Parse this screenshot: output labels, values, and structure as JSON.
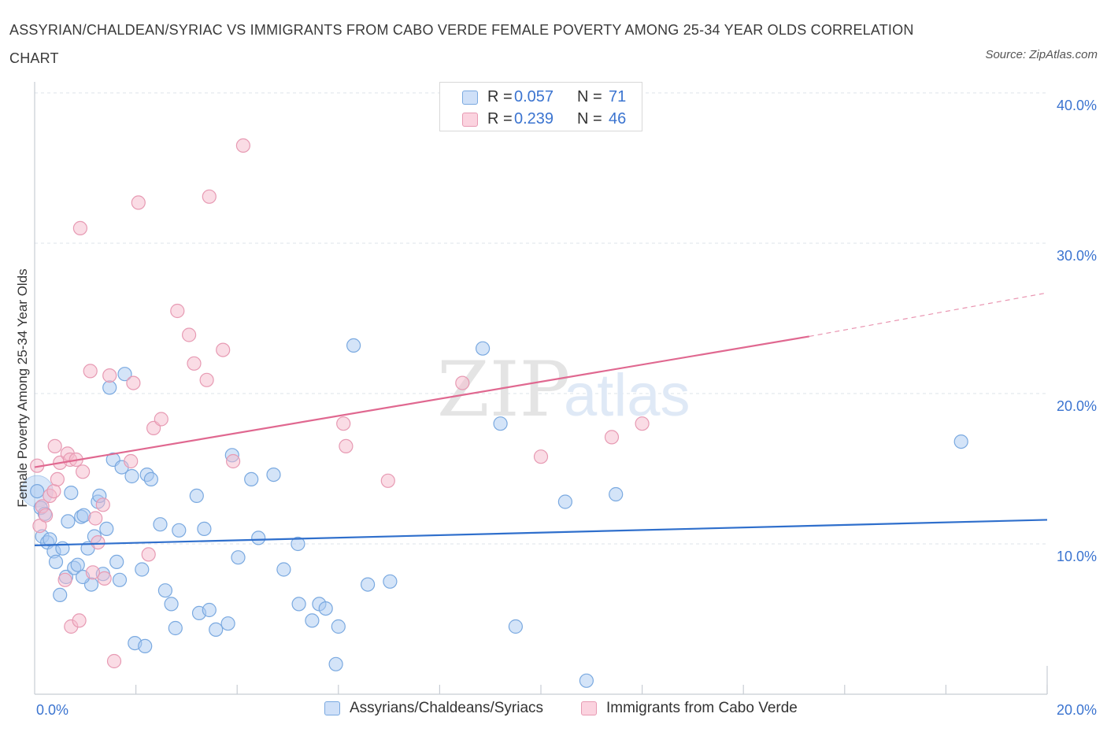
{
  "header": {
    "title": "ASSYRIAN/CHALDEAN/SYRIAC VS IMMIGRANTS FROM CABO VERDE FEMALE POVERTY AMONG 25-34 YEAR OLDS CORRELATION CHART",
    "source": "Source: ZipAtlas.com"
  },
  "watermark": {
    "zip": "ZIP",
    "atlas": "atlas"
  },
  "legend": {
    "rows": [
      {
        "r_label": "R =",
        "r_value": "0.057",
        "n_label": "N =",
        "n_value": "71",
        "color": "#a9c9f2"
      },
      {
        "r_label": "R =",
        "r_value": "0.239",
        "n_label": "N =",
        "n_value": "46",
        "color": "#f6b9cb"
      }
    ]
  },
  "colors": {
    "blue_fill": "#a9c9f2",
    "blue_stroke": "#7aa9e0",
    "blue_line": "#2f6fcc",
    "pink_fill": "#f6b9cb",
    "pink_stroke": "#e79ab3",
    "pink_line": "#e06890",
    "axis_text": "#3b74d0",
    "grid": "#dde3ea"
  },
  "chart_data": {
    "type": "scatter",
    "title": "ASSYRIAN/CHALDEAN/SYRIAC VS IMMIGRANTS FROM CABO VERDE FEMALE POVERTY AMONG 25-34 YEAR OLDS CORRELATION CHART",
    "xlabel": "",
    "ylabel": "Female Poverty Among 25-34 Year Olds",
    "xlim": [
      0,
      20
    ],
    "ylim": [
      0,
      40
    ],
    "x_tick_labels": [
      "0.0%",
      "20.0%"
    ],
    "y_ticks": [
      10,
      20,
      30,
      40
    ],
    "y_tick_labels": [
      "10.0%",
      "20.0%",
      "30.0%",
      "40.0%"
    ],
    "grid": true,
    "legend_position": "top-center",
    "series": [
      {
        "name": "Assyrians/Chaldeans/Syriacs",
        "r": 0.057,
        "n": 71,
        "trend": {
          "x": [
            0,
            20
          ],
          "y": [
            9.9,
            11.6
          ]
        },
        "points": [
          [
            0.05,
            13.5
          ],
          [
            0.12,
            12.4
          ],
          [
            0.15,
            10.5
          ],
          [
            0.25,
            10.1
          ],
          [
            0.3,
            10.3
          ],
          [
            0.38,
            9.5
          ],
          [
            0.42,
            8.8
          ],
          [
            0.5,
            6.6
          ],
          [
            0.55,
            9.7
          ],
          [
            0.62,
            7.8
          ],
          [
            0.66,
            11.5
          ],
          [
            0.72,
            13.4
          ],
          [
            0.78,
            8.4
          ],
          [
            0.85,
            8.6
          ],
          [
            0.92,
            11.8
          ],
          [
            0.97,
            11.9
          ],
          [
            1.05,
            9.7
          ],
          [
            1.12,
            7.3
          ],
          [
            1.18,
            10.5
          ],
          [
            1.25,
            12.8
          ],
          [
            1.28,
            13.2
          ],
          [
            1.35,
            8.0
          ],
          [
            1.42,
            11.0
          ],
          [
            1.48,
            20.4
          ],
          [
            1.55,
            15.6
          ],
          [
            1.62,
            8.8
          ],
          [
            1.68,
            7.6
          ],
          [
            1.72,
            15.1
          ],
          [
            1.78,
            21.3
          ],
          [
            1.92,
            14.5
          ],
          [
            1.98,
            3.4
          ],
          [
            2.12,
            8.3
          ],
          [
            2.18,
            3.2
          ],
          [
            2.22,
            14.6
          ],
          [
            2.3,
            14.3
          ],
          [
            2.48,
            11.3
          ],
          [
            2.58,
            6.9
          ],
          [
            2.7,
            6.0
          ],
          [
            2.78,
            4.4
          ],
          [
            2.85,
            10.9
          ],
          [
            3.2,
            13.2
          ],
          [
            3.25,
            5.4
          ],
          [
            3.35,
            11.0
          ],
          [
            3.45,
            5.6
          ],
          [
            3.58,
            4.3
          ],
          [
            3.82,
            4.7
          ],
          [
            3.9,
            15.9
          ],
          [
            4.02,
            9.1
          ],
          [
            4.28,
            14.3
          ],
          [
            4.42,
            10.4
          ],
          [
            4.72,
            14.6
          ],
          [
            4.92,
            8.3
          ],
          [
            5.2,
            10.0
          ],
          [
            5.22,
            6.0
          ],
          [
            5.48,
            4.9
          ],
          [
            5.62,
            6.0
          ],
          [
            5.75,
            5.7
          ],
          [
            5.95,
            2.0
          ],
          [
            6.0,
            4.5
          ],
          [
            6.3,
            23.2
          ],
          [
            6.58,
            7.3
          ],
          [
            7.02,
            7.5
          ],
          [
            8.85,
            23.0
          ],
          [
            9.2,
            18.0
          ],
          [
            9.5,
            4.5
          ],
          [
            10.48,
            12.8
          ],
          [
            10.9,
            0.9
          ],
          [
            11.48,
            13.3
          ],
          [
            18.3,
            16.8
          ],
          [
            0.95,
            7.8
          ],
          [
            0.2,
            12.0
          ]
        ]
      },
      {
        "name": "Immigrants from Cabo Verde",
        "r": 0.239,
        "n": 46,
        "trend": {
          "x": [
            0,
            15.3
          ],
          "y": [
            15.1,
            23.8
          ]
        },
        "trend_dashed": {
          "x": [
            15.3,
            20
          ],
          "y": [
            23.8,
            26.7
          ]
        },
        "points": [
          [
            0.05,
            15.2
          ],
          [
            0.1,
            11.2
          ],
          [
            0.15,
            12.5
          ],
          [
            0.22,
            11.9
          ],
          [
            0.3,
            13.2
          ],
          [
            0.38,
            13.5
          ],
          [
            0.4,
            16.5
          ],
          [
            0.45,
            14.3
          ],
          [
            0.5,
            15.4
          ],
          [
            0.6,
            7.6
          ],
          [
            0.65,
            16.0
          ],
          [
            0.7,
            15.6
          ],
          [
            0.72,
            4.5
          ],
          [
            0.82,
            15.6
          ],
          [
            0.88,
            4.9
          ],
          [
            0.9,
            31.0
          ],
          [
            0.95,
            14.8
          ],
          [
            1.1,
            21.5
          ],
          [
            1.15,
            8.1
          ],
          [
            1.2,
            11.7
          ],
          [
            1.25,
            10.1
          ],
          [
            1.35,
            12.6
          ],
          [
            1.38,
            7.7
          ],
          [
            1.48,
            21.2
          ],
          [
            1.57,
            2.2
          ],
          [
            1.9,
            15.5
          ],
          [
            1.95,
            20.7
          ],
          [
            2.05,
            32.7
          ],
          [
            2.25,
            9.3
          ],
          [
            2.35,
            17.7
          ],
          [
            2.5,
            18.3
          ],
          [
            2.82,
            25.5
          ],
          [
            3.05,
            23.9
          ],
          [
            3.15,
            22.0
          ],
          [
            3.4,
            20.9
          ],
          [
            3.45,
            33.1
          ],
          [
            3.72,
            22.9
          ],
          [
            3.92,
            15.5
          ],
          [
            4.12,
            36.5
          ],
          [
            6.1,
            18.0
          ],
          [
            6.15,
            16.5
          ],
          [
            6.98,
            14.2
          ],
          [
            8.45,
            20.7
          ],
          [
            10.0,
            15.8
          ],
          [
            11.4,
            17.1
          ],
          [
            12.0,
            18.0
          ]
        ]
      }
    ]
  }
}
